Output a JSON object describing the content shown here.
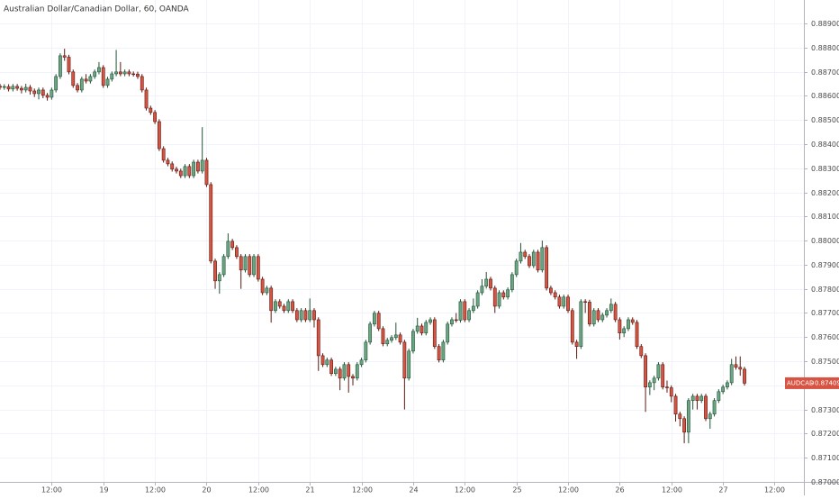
{
  "chart_data": {
    "type": "candlestick",
    "title": "Australian Dollar/Canadian Dollar, 60, OANDA",
    "up_color": "#6ba583",
    "up_border": "#225437",
    "down_color": "#d75442",
    "down_border": "#5b1a13",
    "grid": true,
    "xlim": [
      0,
      186.8
    ],
    "ylim": [
      0.87,
      0.88997
    ],
    "xticks": [
      {
        "value": 12,
        "label": "12:00"
      },
      {
        "value": 24,
        "label": "19"
      },
      {
        "value": 36,
        "label": "12:00"
      },
      {
        "value": 48,
        "label": "20"
      },
      {
        "value": 60,
        "label": "12:00"
      },
      {
        "value": 72,
        "label": "21"
      },
      {
        "value": 84,
        "label": "12:00"
      },
      {
        "value": 96,
        "label": "24"
      },
      {
        "value": 108,
        "label": "12:00"
      },
      {
        "value": 120,
        "label": "25"
      },
      {
        "value": 132,
        "label": "12:00"
      },
      {
        "value": 144,
        "label": "26"
      },
      {
        "value": 156,
        "label": "12:00"
      },
      {
        "value": 168,
        "label": "27"
      },
      {
        "value": 180,
        "label": "12:00"
      }
    ],
    "yticks": [
      {
        "value": 0.87,
        "label": "0.87000"
      },
      {
        "value": 0.871,
        "label": "0.87100"
      },
      {
        "value": 0.872,
        "label": "0.87200"
      },
      {
        "value": 0.873,
        "label": "0.87300"
      },
      {
        "value": 0.874,
        "label": "0.87400"
      },
      {
        "value": 0.875,
        "label": "0.87500"
      },
      {
        "value": 0.876,
        "label": "0.87600"
      },
      {
        "value": 0.877,
        "label": "0.87700"
      },
      {
        "value": 0.878,
        "label": "0.87800"
      },
      {
        "value": 0.879,
        "label": "0.87900"
      },
      {
        "value": 0.88,
        "label": "0.88000"
      },
      {
        "value": 0.881,
        "label": "0.88100"
      },
      {
        "value": 0.882,
        "label": "0.88200"
      },
      {
        "value": 0.883,
        "label": "0.88300"
      },
      {
        "value": 0.884,
        "label": "0.88400"
      },
      {
        "value": 0.885,
        "label": "0.88500"
      },
      {
        "value": 0.886,
        "label": "0.88600"
      },
      {
        "value": 0.887,
        "label": "0.88700"
      },
      {
        "value": 0.888,
        "label": "0.88800"
      },
      {
        "value": 0.889,
        "label": "0.88900"
      }
    ],
    "price_label": {
      "symbol": "AUDCAD",
      "value": 0.87409,
      "label": "0.87409",
      "color": "#d75442"
    },
    "x": [
      0,
      1,
      2,
      3,
      4,
      5,
      6,
      7,
      8,
      9,
      10,
      11,
      12,
      13,
      14,
      15,
      16,
      17,
      18,
      19,
      20,
      21,
      22,
      23,
      24,
      25,
      26,
      27,
      28,
      29,
      30,
      31,
      32,
      33,
      34,
      35,
      36,
      37,
      38,
      39,
      40,
      41,
      42,
      43,
      44,
      45,
      46,
      47,
      48,
      49,
      50,
      51,
      52,
      53,
      54,
      55,
      56,
      57,
      58,
      59,
      60,
      61,
      62,
      63,
      64,
      65,
      66,
      67,
      68,
      69,
      70,
      71,
      72,
      73,
      74,
      75,
      76,
      77,
      78,
      79,
      80,
      81,
      82,
      83,
      84,
      85,
      86,
      87,
      88,
      89,
      90,
      91,
      92,
      93,
      94,
      95,
      96,
      97,
      98,
      99,
      100,
      101,
      102,
      103,
      104,
      105,
      106,
      107,
      108,
      109,
      110,
      111,
      112,
      113,
      114,
      115,
      116,
      117,
      118,
      119,
      120,
      121,
      122,
      123,
      124,
      125,
      126,
      127,
      128,
      129,
      130,
      131,
      132,
      133,
      134,
      135,
      136,
      137,
      138,
      139,
      140,
      141,
      142,
      143,
      144,
      145,
      146,
      147,
      148,
      149,
      150,
      151,
      152,
      153,
      154,
      155,
      156,
      157,
      158,
      159,
      160,
      161,
      162,
      163,
      164,
      165,
      166,
      167,
      168,
      169,
      170,
      171,
      172,
      173
    ],
    "open": [
      0.8864,
      0.88635,
      0.88638,
      0.88628,
      0.88639,
      0.88631,
      0.88624,
      0.88635,
      0.8862,
      0.88609,
      0.88624,
      0.88602,
      0.88594,
      0.88624,
      0.8868,
      0.88766,
      0.8876,
      0.88699,
      0.88643,
      0.88624,
      0.88669,
      0.88661,
      0.8868,
      0.88699,
      0.88717,
      0.88643,
      0.88669,
      0.88691,
      0.88699,
      0.88691,
      0.88699,
      0.88691,
      0.8869,
      0.8868,
      0.88624,
      0.88549,
      0.88531,
      0.88493,
      0.88381,
      0.88333,
      0.88318,
      0.88296,
      0.88288,
      0.88269,
      0.88307,
      0.88269,
      0.88325,
      0.88288,
      0.88333,
      0.88232,
      0.87915,
      0.87833,
      0.87859,
      0.87934,
      0.87997,
      0.87971,
      0.87934,
      0.87878,
      0.87934,
      0.87859,
      0.87934,
      0.8784,
      0.87784,
      0.87803,
      0.8771,
      0.87747,
      0.87728,
      0.8771,
      0.87747,
      0.8771,
      0.87672,
      0.8771,
      0.87672,
      0.8771,
      0.87672,
      0.87523,
      0.87486,
      0.87505,
      0.87449,
      0.87467,
      0.8743,
      0.87486,
      0.87437,
      0.8743,
      0.87486,
      0.87505,
      0.87579,
      0.87654,
      0.87699,
      0.87635,
      0.87572,
      0.87587,
      0.87598,
      0.87609,
      0.87579,
      0.8743,
      0.87542,
      0.87624,
      0.87646,
      0.87617,
      0.87661,
      0.87672,
      0.87561,
      0.87505,
      0.87579,
      0.87654,
      0.87672,
      0.8767,
      0.87747,
      0.87672,
      0.8771,
      0.87728,
      0.87784,
      0.87811,
      0.8784,
      0.87803,
      0.87728,
      0.87784,
      0.87766,
      0.87796,
      0.87859,
      0.87915,
      0.87952,
      0.87934,
      0.87896,
      0.87952,
      0.87878,
      0.87971,
      0.87803,
      0.87784,
      0.87766,
      0.87728,
      0.87766,
      0.8771,
      0.87579,
      0.87561,
      0.87747,
      0.87745,
      0.87654,
      0.8771,
      0.87672,
      0.87691,
      0.8771,
      0.87736,
      0.87672,
      0.87617,
      0.87635,
      0.87672,
      0.87661,
      0.87561,
      0.87523,
      0.87393,
      0.87411,
      0.8743,
      0.87486,
      0.87393,
      0.8739,
      0.87355,
      0.87281,
      0.87262,
      0.87206,
      0.87337,
      0.87355,
      0.87337,
      0.87355,
      0.87262,
      0.87281,
      0.87337,
      0.87374,
      0.87393,
      0.87411,
      0.87486,
      0.87475,
      0.87467
    ],
    "high": [
      0.8865,
      0.88648,
      0.88648,
      0.88649,
      0.88649,
      0.88641,
      0.8865,
      0.88645,
      0.8863,
      0.88634,
      0.88634,
      0.88612,
      0.88634,
      0.8869,
      0.88776,
      0.88795,
      0.8877,
      0.88709,
      0.88653,
      0.88679,
      0.8869,
      0.8869,
      0.88709,
      0.8874,
      0.88727,
      0.88679,
      0.88701,
      0.8879,
      0.8874,
      0.88709,
      0.88709,
      0.88701,
      0.887,
      0.8869,
      0.88634,
      0.88559,
      0.88541,
      0.88503,
      0.88391,
      0.88343,
      0.88328,
      0.88306,
      0.88298,
      0.88317,
      0.88317,
      0.88335,
      0.88335,
      0.8847,
      0.88343,
      0.88242,
      0.87925,
      0.87869,
      0.87944,
      0.8803,
      0.88007,
      0.87981,
      0.87944,
      0.87944,
      0.87944,
      0.87944,
      0.87944,
      0.8785,
      0.87813,
      0.87813,
      0.87757,
      0.87757,
      0.87738,
      0.87757,
      0.87757,
      0.8772,
      0.8772,
      0.8772,
      0.8776,
      0.8772,
      0.87682,
      0.87533,
      0.87515,
      0.87515,
      0.87477,
      0.87477,
      0.87496,
      0.87496,
      0.87447,
      0.87496,
      0.87515,
      0.87589,
      0.87664,
      0.87709,
      0.87709,
      0.87645,
      0.87597,
      0.87608,
      0.8766,
      0.87619,
      0.87589,
      0.87552,
      0.87634,
      0.8768,
      0.87656,
      0.87671,
      0.87682,
      0.87682,
      0.87571,
      0.87589,
      0.87664,
      0.87682,
      0.877,
      0.87757,
      0.87757,
      0.8772,
      0.8776,
      0.87794,
      0.8784,
      0.8787,
      0.8785,
      0.87813,
      0.87794,
      0.87794,
      0.87806,
      0.87869,
      0.87925,
      0.8799,
      0.87962,
      0.87944,
      0.87962,
      0.87962,
      0.88,
      0.87981,
      0.87813,
      0.87794,
      0.87776,
      0.87776,
      0.87776,
      0.8772,
      0.87589,
      0.87757,
      0.87757,
      0.87755,
      0.8772,
      0.8772,
      0.87701,
      0.8772,
      0.8776,
      0.87746,
      0.87682,
      0.87645,
      0.87682,
      0.87682,
      0.87671,
      0.87571,
      0.87533,
      0.87421,
      0.8744,
      0.87496,
      0.87496,
      0.8742,
      0.874,
      0.87365,
      0.87291,
      0.87272,
      0.87347,
      0.87365,
      0.87365,
      0.87365,
      0.87365,
      0.87291,
      0.87347,
      0.87384,
      0.87403,
      0.87421,
      0.8751,
      0.8752,
      0.8752,
      0.87477
    ],
    "low": [
      0.88625,
      0.88625,
      0.88618,
      0.88618,
      0.88621,
      0.8861,
      0.88614,
      0.88605,
      0.88595,
      0.88585,
      0.8859,
      0.8858,
      0.88584,
      0.88614,
      0.8867,
      0.88745,
      0.88689,
      0.88633,
      0.88614,
      0.88614,
      0.88651,
      0.88651,
      0.8867,
      0.88689,
      0.88633,
      0.88633,
      0.88659,
      0.88681,
      0.88681,
      0.88681,
      0.88681,
      0.8868,
      0.8867,
      0.88614,
      0.88539,
      0.88521,
      0.88483,
      0.88371,
      0.88323,
      0.88308,
      0.88286,
      0.88278,
      0.88259,
      0.88259,
      0.88259,
      0.88259,
      0.88278,
      0.88278,
      0.88222,
      0.87905,
      0.878,
      0.8778,
      0.87849,
      0.87924,
      0.87961,
      0.87924,
      0.878,
      0.87868,
      0.87849,
      0.87849,
      0.8783,
      0.87774,
      0.87774,
      0.8766,
      0.877,
      0.87718,
      0.877,
      0.877,
      0.877,
      0.87662,
      0.87662,
      0.87662,
      0.87662,
      0.8764,
      0.8746,
      0.87476,
      0.87476,
      0.87439,
      0.87439,
      0.8738,
      0.8742,
      0.8737,
      0.874,
      0.8742,
      0.87476,
      0.87495,
      0.87569,
      0.87644,
      0.87625,
      0.87562,
      0.87562,
      0.87577,
      0.87588,
      0.87569,
      0.873,
      0.8742,
      0.87532,
      0.87614,
      0.87607,
      0.87607,
      0.87651,
      0.87551,
      0.87495,
      0.87495,
      0.87569,
      0.87644,
      0.8766,
      0.8766,
      0.87662,
      0.87662,
      0.877,
      0.87718,
      0.87774,
      0.87801,
      0.87793,
      0.877,
      0.87718,
      0.87756,
      0.87756,
      0.87786,
      0.87849,
      0.87905,
      0.87924,
      0.87886,
      0.87886,
      0.87868,
      0.87868,
      0.87793,
      0.87774,
      0.87756,
      0.87718,
      0.87718,
      0.877,
      0.87569,
      0.8751,
      0.87551,
      0.877,
      0.87644,
      0.87644,
      0.87662,
      0.87662,
      0.87681,
      0.877,
      0.87662,
      0.8759,
      0.876,
      0.87625,
      0.87651,
      0.87551,
      0.87513,
      0.8729,
      0.8736,
      0.8738,
      0.8742,
      0.87383,
      0.8737,
      0.8733,
      0.8725,
      0.8723,
      0.8716,
      0.8716,
      0.873,
      0.873,
      0.87327,
      0.87252,
      0.8722,
      0.87271,
      0.87327,
      0.87364,
      0.87383,
      0.87401,
      0.87465,
      0.8744,
      0.87399
    ],
    "close": [
      0.88635,
      0.88638,
      0.88628,
      0.88639,
      0.88631,
      0.88624,
      0.88635,
      0.8862,
      0.88609,
      0.88624,
      0.88602,
      0.88594,
      0.88624,
      0.8868,
      0.88766,
      0.8876,
      0.88699,
      0.88643,
      0.88624,
      0.88669,
      0.88661,
      0.8868,
      0.88699,
      0.88717,
      0.88643,
      0.88669,
      0.88691,
      0.88699,
      0.88691,
      0.88699,
      0.88691,
      0.8869,
      0.8868,
      0.88624,
      0.88549,
      0.88531,
      0.88493,
      0.88381,
      0.88333,
      0.88318,
      0.88296,
      0.88288,
      0.88269,
      0.88307,
      0.88269,
      0.88325,
      0.88288,
      0.88333,
      0.88232,
      0.87915,
      0.87833,
      0.87859,
      0.87934,
      0.87997,
      0.87971,
      0.87934,
      0.87878,
      0.87934,
      0.87859,
      0.87934,
      0.8784,
      0.87784,
      0.87803,
      0.8771,
      0.87747,
      0.87728,
      0.8771,
      0.87747,
      0.8771,
      0.87672,
      0.8771,
      0.87672,
      0.8771,
      0.87672,
      0.87523,
      0.87486,
      0.87505,
      0.87449,
      0.87467,
      0.8743,
      0.87486,
      0.87437,
      0.8743,
      0.87486,
      0.87505,
      0.87579,
      0.87654,
      0.87699,
      0.87635,
      0.87572,
      0.87587,
      0.87598,
      0.87609,
      0.87579,
      0.8743,
      0.87542,
      0.87624,
      0.87646,
      0.87617,
      0.87661,
      0.87672,
      0.87561,
      0.87505,
      0.87579,
      0.87654,
      0.87672,
      0.8767,
      0.87747,
      0.87672,
      0.8771,
      0.87728,
      0.87784,
      0.87811,
      0.8784,
      0.87803,
      0.87728,
      0.87784,
      0.87766,
      0.87796,
      0.87859,
      0.87915,
      0.87952,
      0.87934,
      0.87896,
      0.87952,
      0.87878,
      0.87971,
      0.87803,
      0.87784,
      0.87766,
      0.87728,
      0.87766,
      0.8771,
      0.87579,
      0.87561,
      0.87747,
      0.87745,
      0.87654,
      0.8771,
      0.87672,
      0.87691,
      0.8771,
      0.87736,
      0.87672,
      0.87617,
      0.87635,
      0.87672,
      0.87661,
      0.87561,
      0.87523,
      0.87393,
      0.87411,
      0.8743,
      0.87486,
      0.87393,
      0.8739,
      0.87355,
      0.87281,
      0.87262,
      0.87206,
      0.87337,
      0.87355,
      0.87337,
      0.87355,
      0.87262,
      0.87281,
      0.87337,
      0.87374,
      0.87393,
      0.87411,
      0.87486,
      0.87475,
      0.87467,
      0.87409
    ]
  }
}
